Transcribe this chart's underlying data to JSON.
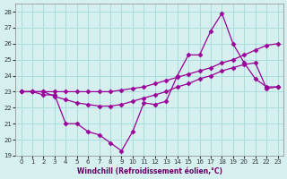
{
  "xlabel": "Windchill (Refroidissement éolien,°C)",
  "ylabel": "",
  "background_color": "#d6f0f0",
  "grid_color": "#aadddd",
  "line_color": "#990099",
  "xlim": [
    -0.5,
    23.5
  ],
  "ylim": [
    19,
    28.5
  ],
  "yticks": [
    19,
    20,
    21,
    22,
    23,
    24,
    25,
    26,
    27,
    28
  ],
  "xticks": [
    0,
    1,
    2,
    3,
    4,
    5,
    6,
    7,
    8,
    9,
    10,
    11,
    12,
    13,
    14,
    15,
    16,
    17,
    18,
    19,
    20,
    21,
    22,
    23
  ],
  "line1_x": [
    0,
    1,
    2,
    3,
    4,
    5,
    6,
    7,
    8,
    9,
    10,
    11,
    12,
    13,
    14,
    15,
    16,
    17,
    18,
    19,
    20,
    21,
    22,
    23
  ],
  "line1_y": [
    23.0,
    23.0,
    22.8,
    22.8,
    21.0,
    21.0,
    20.5,
    20.3,
    19.8,
    19.3,
    20.5,
    22.3,
    22.2,
    22.4,
    24.0,
    25.3,
    25.3,
    26.8,
    27.9,
    26.0,
    24.8,
    23.8,
    23.3,
    23.3
  ],
  "line2_x": [
    0,
    1,
    2,
    3,
    4,
    5,
    6,
    7,
    8,
    9,
    10,
    11,
    12,
    13,
    14,
    15,
    16,
    17,
    18,
    19,
    20,
    21,
    22,
    23
  ],
  "line2_y": [
    23.0,
    23.0,
    23.0,
    22.7,
    22.5,
    22.3,
    22.2,
    22.1,
    22.1,
    22.2,
    22.4,
    22.6,
    22.8,
    23.0,
    23.3,
    23.5,
    23.8,
    24.0,
    24.3,
    24.5,
    24.7,
    24.8,
    23.2,
    23.3
  ],
  "line3_x": [
    0,
    1,
    2,
    3,
    4,
    5,
    6,
    7,
    8,
    9,
    10,
    11,
    12,
    13,
    14,
    15,
    16,
    17,
    18,
    19,
    20,
    21,
    22,
    23
  ],
  "line3_y": [
    23.0,
    23.0,
    23.0,
    23.0,
    23.0,
    23.0,
    23.0,
    23.0,
    23.0,
    23.1,
    23.2,
    23.3,
    23.5,
    23.7,
    23.9,
    24.1,
    24.3,
    24.5,
    24.8,
    25.0,
    25.3,
    25.6,
    25.9,
    26.0
  ]
}
